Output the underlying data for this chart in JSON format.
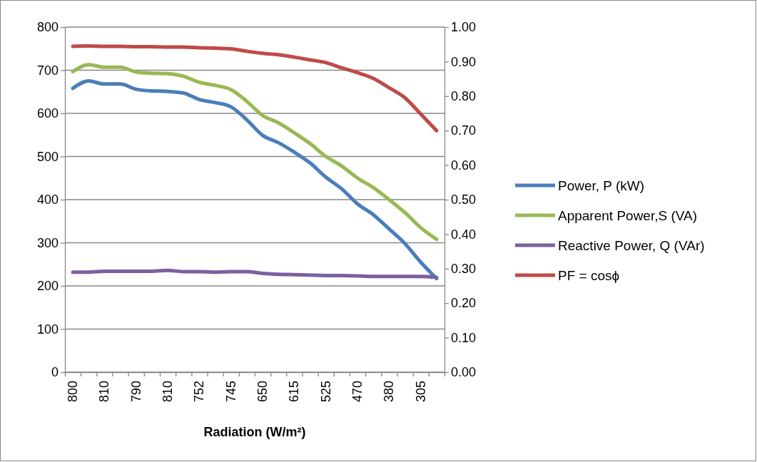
{
  "chart_data": {
    "type": "line",
    "xlabel": "Radiation (W/m²)",
    "categories": [
      "800",
      null,
      "810",
      null,
      "790",
      null,
      "810",
      null,
      "752",
      null,
      "745",
      null,
      "650",
      null,
      "615",
      null,
      "525",
      null,
      "470",
      null,
      "380",
      null,
      "305",
      null
    ],
    "series": [
      {
        "name": "Power, P (kW)",
        "color": "#4a7ebb",
        "values": [
          658,
          675,
          668,
          668,
          656,
          652,
          651,
          647,
          632,
          625,
          615,
          585,
          549,
          532,
          510,
          485,
          452,
          425,
          390,
          365,
          332,
          298,
          255,
          217
        ]
      },
      {
        "name": "Apparent Power,S (VA)",
        "color": "#98b954",
        "values": [
          697,
          713,
          707,
          707,
          696,
          693,
          692,
          686,
          672,
          665,
          655,
          628,
          595,
          578,
          555,
          530,
          500,
          478,
          450,
          428,
          400,
          370,
          335,
          308
        ]
      },
      {
        "name": "Reactive Power, Q (VAr)",
        "color": "#7d60a0",
        "values": [
          232,
          232,
          234,
          234,
          234,
          234,
          236,
          233,
          233,
          232,
          233,
          233,
          229,
          227,
          226,
          225,
          224,
          224,
          223,
          222,
          222,
          222,
          222,
          220
        ]
      },
      {
        "name": "PF = cosϕ",
        "color": "#be4b48",
        "axis": "y2",
        "values": [
          0.944,
          0.945,
          0.944,
          0.944,
          0.943,
          0.943,
          0.942,
          0.942,
          0.94,
          0.939,
          0.937,
          0.93,
          0.924,
          0.92,
          0.913,
          0.905,
          0.897,
          0.882,
          0.868,
          0.851,
          0.824,
          0.795,
          0.748,
          0.7
        ]
      }
    ],
    "ylim": [
      0,
      800
    ],
    "yticks": [
      0,
      100,
      200,
      300,
      400,
      500,
      600,
      700,
      800
    ],
    "y2lim": [
      0,
      1
    ],
    "y2ticks": [
      {
        "value": 0,
        "label": "0.00"
      },
      {
        "value": 0.1,
        "label": "0.10"
      },
      {
        "value": 0.2,
        "label": "0.20"
      },
      {
        "value": 0.3,
        "label": "0.30"
      },
      {
        "value": 0.4,
        "label": "0.40"
      },
      {
        "value": 0.5,
        "label": "0.50"
      },
      {
        "value": 0.6,
        "label": "0.60"
      },
      {
        "value": 0.7,
        "label": "0.70"
      },
      {
        "value": 0.8,
        "label": "0.80"
      },
      {
        "value": 0.9,
        "label": "0.90"
      },
      {
        "value": 1,
        "label": "1.00"
      }
    ],
    "grid": "y",
    "legend": "right",
    "marker": "none",
    "line_style": "solid"
  }
}
